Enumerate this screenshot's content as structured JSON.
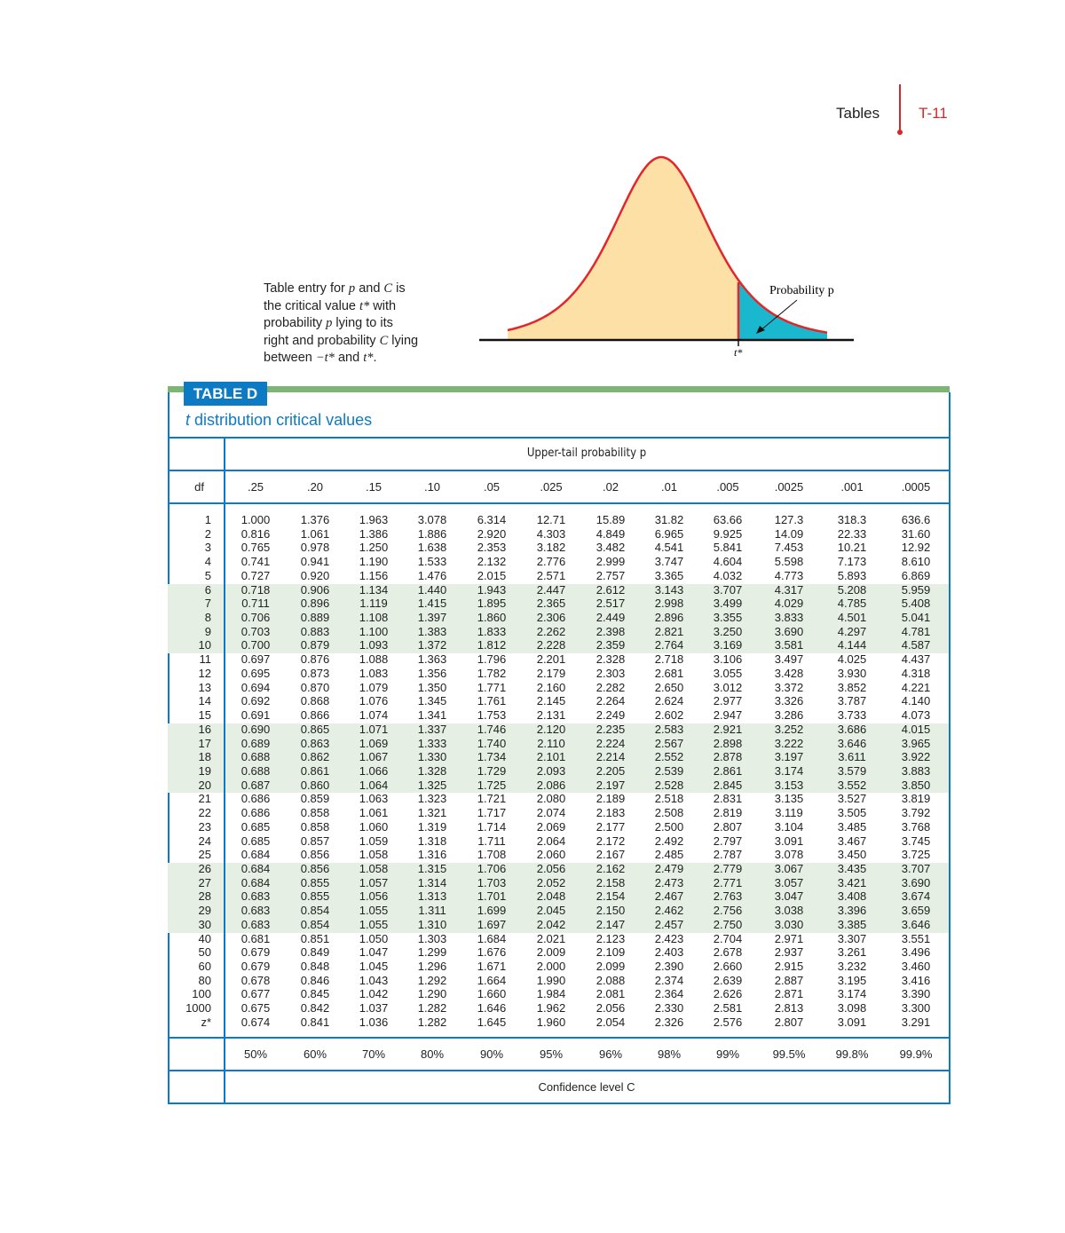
{
  "header": {
    "section": "Tables",
    "page": "T-11"
  },
  "caption": {
    "line1_a": "Table entry for ",
    "p": "p",
    "line1_b": " and ",
    "C": "C",
    "line1_c": " is",
    "line2_a": "the critical value ",
    "tstar": "t*",
    "line2_b": " with",
    "line3_a": "probability ",
    "line3_b": " lying to its",
    "line4_a": "right and probability ",
    "line4_b": " lying",
    "line5_a": "between ",
    "neg_tstar": "−t*",
    "line5_b": " and ",
    "line5_c": "."
  },
  "figure": {
    "prob_label": "Probability p",
    "tstar_label": "t*",
    "colors": {
      "body": "#fde0a6",
      "tail": "#1ab8cf",
      "curve": "#e4262b"
    }
  },
  "table": {
    "tag": "TABLE D",
    "title_italic": "t",
    "title_rest": " distribution critical values",
    "upper_label": "Upper-tail probability p",
    "df_label": "df",
    "columns": [
      ".25",
      ".20",
      ".15",
      ".10",
      ".05",
      ".025",
      ".02",
      ".01",
      ".005",
      ".0025",
      ".001",
      ".0005"
    ],
    "rows": [
      {
        "df": "1",
        "v": [
          "1.000",
          "1.376",
          "1.963",
          "3.078",
          "6.314",
          "12.71",
          "15.89",
          "31.82",
          "63.66",
          "127.3",
          "318.3",
          "636.6"
        ]
      },
      {
        "df": "2",
        "v": [
          "0.816",
          "1.061",
          "1.386",
          "1.886",
          "2.920",
          "4.303",
          "4.849",
          "6.965",
          "9.925",
          "14.09",
          "22.33",
          "31.60"
        ]
      },
      {
        "df": "3",
        "v": [
          "0.765",
          "0.978",
          "1.250",
          "1.638",
          "2.353",
          "3.182",
          "3.482",
          "4.541",
          "5.841",
          "7.453",
          "10.21",
          "12.92"
        ]
      },
      {
        "df": "4",
        "v": [
          "0.741",
          "0.941",
          "1.190",
          "1.533",
          "2.132",
          "2.776",
          "2.999",
          "3.747",
          "4.604",
          "5.598",
          "7.173",
          "8.610"
        ]
      },
      {
        "df": "5",
        "v": [
          "0.727",
          "0.920",
          "1.156",
          "1.476",
          "2.015",
          "2.571",
          "2.757",
          "3.365",
          "4.032",
          "4.773",
          "5.893",
          "6.869"
        ]
      },
      {
        "df": "6",
        "v": [
          "0.718",
          "0.906",
          "1.134",
          "1.440",
          "1.943",
          "2.447",
          "2.612",
          "3.143",
          "3.707",
          "4.317",
          "5.208",
          "5.959"
        ]
      },
      {
        "df": "7",
        "v": [
          "0.711",
          "0.896",
          "1.119",
          "1.415",
          "1.895",
          "2.365",
          "2.517",
          "2.998",
          "3.499",
          "4.029",
          "4.785",
          "5.408"
        ]
      },
      {
        "df": "8",
        "v": [
          "0.706",
          "0.889",
          "1.108",
          "1.397",
          "1.860",
          "2.306",
          "2.449",
          "2.896",
          "3.355",
          "3.833",
          "4.501",
          "5.041"
        ]
      },
      {
        "df": "9",
        "v": [
          "0.703",
          "0.883",
          "1.100",
          "1.383",
          "1.833",
          "2.262",
          "2.398",
          "2.821",
          "3.250",
          "3.690",
          "4.297",
          "4.781"
        ]
      },
      {
        "df": "10",
        "v": [
          "0.700",
          "0.879",
          "1.093",
          "1.372",
          "1.812",
          "2.228",
          "2.359",
          "2.764",
          "3.169",
          "3.581",
          "4.144",
          "4.587"
        ]
      },
      {
        "df": "11",
        "v": [
          "0.697",
          "0.876",
          "1.088",
          "1.363",
          "1.796",
          "2.201",
          "2.328",
          "2.718",
          "3.106",
          "3.497",
          "4.025",
          "4.437"
        ]
      },
      {
        "df": "12",
        "v": [
          "0.695",
          "0.873",
          "1.083",
          "1.356",
          "1.782",
          "2.179",
          "2.303",
          "2.681",
          "3.055",
          "3.428",
          "3.930",
          "4.318"
        ]
      },
      {
        "df": "13",
        "v": [
          "0.694",
          "0.870",
          "1.079",
          "1.350",
          "1.771",
          "2.160",
          "2.282",
          "2.650",
          "3.012",
          "3.372",
          "3.852",
          "4.221"
        ]
      },
      {
        "df": "14",
        "v": [
          "0.692",
          "0.868",
          "1.076",
          "1.345",
          "1.761",
          "2.145",
          "2.264",
          "2.624",
          "2.977",
          "3.326",
          "3.787",
          "4.140"
        ]
      },
      {
        "df": "15",
        "v": [
          "0.691",
          "0.866",
          "1.074",
          "1.341",
          "1.753",
          "2.131",
          "2.249",
          "2.602",
          "2.947",
          "3.286",
          "3.733",
          "4.073"
        ]
      },
      {
        "df": "16",
        "v": [
          "0.690",
          "0.865",
          "1.071",
          "1.337",
          "1.746",
          "2.120",
          "2.235",
          "2.583",
          "2.921",
          "3.252",
          "3.686",
          "4.015"
        ]
      },
      {
        "df": "17",
        "v": [
          "0.689",
          "0.863",
          "1.069",
          "1.333",
          "1.740",
          "2.110",
          "2.224",
          "2.567",
          "2.898",
          "3.222",
          "3.646",
          "3.965"
        ]
      },
      {
        "df": "18",
        "v": [
          "0.688",
          "0.862",
          "1.067",
          "1.330",
          "1.734",
          "2.101",
          "2.214",
          "2.552",
          "2.878",
          "3.197",
          "3.611",
          "3.922"
        ]
      },
      {
        "df": "19",
        "v": [
          "0.688",
          "0.861",
          "1.066",
          "1.328",
          "1.729",
          "2.093",
          "2.205",
          "2.539",
          "2.861",
          "3.174",
          "3.579",
          "3.883"
        ]
      },
      {
        "df": "20",
        "v": [
          "0.687",
          "0.860",
          "1.064",
          "1.325",
          "1.725",
          "2.086",
          "2.197",
          "2.528",
          "2.845",
          "3.153",
          "3.552",
          "3.850"
        ]
      },
      {
        "df": "21",
        "v": [
          "0.686",
          "0.859",
          "1.063",
          "1.323",
          "1.721",
          "2.080",
          "2.189",
          "2.518",
          "2.831",
          "3.135",
          "3.527",
          "3.819"
        ]
      },
      {
        "df": "22",
        "v": [
          "0.686",
          "0.858",
          "1.061",
          "1.321",
          "1.717",
          "2.074",
          "2.183",
          "2.508",
          "2.819",
          "3.119",
          "3.505",
          "3.792"
        ]
      },
      {
        "df": "23",
        "v": [
          "0.685",
          "0.858",
          "1.060",
          "1.319",
          "1.714",
          "2.069",
          "2.177",
          "2.500",
          "2.807",
          "3.104",
          "3.485",
          "3.768"
        ]
      },
      {
        "df": "24",
        "v": [
          "0.685",
          "0.857",
          "1.059",
          "1.318",
          "1.711",
          "2.064",
          "2.172",
          "2.492",
          "2.797",
          "3.091",
          "3.467",
          "3.745"
        ]
      },
      {
        "df": "25",
        "v": [
          "0.684",
          "0.856",
          "1.058",
          "1.316",
          "1.708",
          "2.060",
          "2.167",
          "2.485",
          "2.787",
          "3.078",
          "3.450",
          "3.725"
        ]
      },
      {
        "df": "26",
        "v": [
          "0.684",
          "0.856",
          "1.058",
          "1.315",
          "1.706",
          "2.056",
          "2.162",
          "2.479",
          "2.779",
          "3.067",
          "3.435",
          "3.707"
        ]
      },
      {
        "df": "27",
        "v": [
          "0.684",
          "0.855",
          "1.057",
          "1.314",
          "1.703",
          "2.052",
          "2.158",
          "2.473",
          "2.771",
          "3.057",
          "3.421",
          "3.690"
        ]
      },
      {
        "df": "28",
        "v": [
          "0.683",
          "0.855",
          "1.056",
          "1.313",
          "1.701",
          "2.048",
          "2.154",
          "2.467",
          "2.763",
          "3.047",
          "3.408",
          "3.674"
        ]
      },
      {
        "df": "29",
        "v": [
          "0.683",
          "0.854",
          "1.055",
          "1.311",
          "1.699",
          "2.045",
          "2.150",
          "2.462",
          "2.756",
          "3.038",
          "3.396",
          "3.659"
        ]
      },
      {
        "df": "30",
        "v": [
          "0.683",
          "0.854",
          "1.055",
          "1.310",
          "1.697",
          "2.042",
          "2.147",
          "2.457",
          "2.750",
          "3.030",
          "3.385",
          "3.646"
        ]
      },
      {
        "df": "40",
        "v": [
          "0.681",
          "0.851",
          "1.050",
          "1.303",
          "1.684",
          "2.021",
          "2.123",
          "2.423",
          "2.704",
          "2.971",
          "3.307",
          "3.551"
        ]
      },
      {
        "df": "50",
        "v": [
          "0.679",
          "0.849",
          "1.047",
          "1.299",
          "1.676",
          "2.009",
          "2.109",
          "2.403",
          "2.678",
          "2.937",
          "3.261",
          "3.496"
        ]
      },
      {
        "df": "60",
        "v": [
          "0.679",
          "0.848",
          "1.045",
          "1.296",
          "1.671",
          "2.000",
          "2.099",
          "2.390",
          "2.660",
          "2.915",
          "3.232",
          "3.460"
        ]
      },
      {
        "df": "80",
        "v": [
          "0.678",
          "0.846",
          "1.043",
          "1.292",
          "1.664",
          "1.990",
          "2.088",
          "2.374",
          "2.639",
          "2.887",
          "3.195",
          "3.416"
        ]
      },
      {
        "df": "100",
        "v": [
          "0.677",
          "0.845",
          "1.042",
          "1.290",
          "1.660",
          "1.984",
          "2.081",
          "2.364",
          "2.626",
          "2.871",
          "3.174",
          "3.390"
        ]
      },
      {
        "df": "1000",
        "v": [
          "0.675",
          "0.842",
          "1.037",
          "1.282",
          "1.646",
          "1.962",
          "2.056",
          "2.330",
          "2.581",
          "2.813",
          "3.098",
          "3.300"
        ]
      },
      {
        "df": "z*",
        "v": [
          "0.674",
          "0.841",
          "1.036",
          "1.282",
          "1.645",
          "1.960",
          "2.054",
          "2.326",
          "2.576",
          "2.807",
          "3.091",
          "3.291"
        ]
      }
    ],
    "confidence": [
      "50%",
      "60%",
      "70%",
      "80%",
      "90%",
      "95%",
      "96%",
      "98%",
      "99%",
      "99.5%",
      "99.8%",
      "99.9%"
    ],
    "confidence_label": "Confidence level C",
    "band_color": "#e5efe4",
    "accent": "#0d7ac4"
  }
}
